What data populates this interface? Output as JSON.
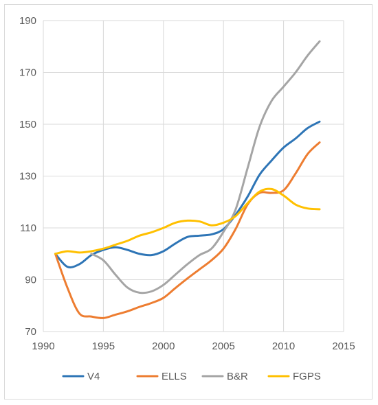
{
  "chart_data": {
    "type": "line",
    "title": "",
    "xlabel": "",
    "ylabel": "",
    "xlim": [
      1990,
      2015
    ],
    "ylim": [
      70,
      190
    ],
    "x_ticks": [
      1990,
      1995,
      2000,
      2005,
      2010,
      2015
    ],
    "y_ticks": [
      70,
      90,
      110,
      130,
      150,
      170,
      190
    ],
    "x_tick_labels": [
      "1990",
      "1995",
      "2000",
      "2005",
      "2010",
      "2015"
    ],
    "y_tick_labels": [
      "70",
      "90",
      "110",
      "130",
      "150",
      "170",
      "190"
    ],
    "grid": true,
    "legend_position": "bottom",
    "series": [
      {
        "name": "V4",
        "color": "#2e75b6",
        "x": [
          1991,
          1992,
          1993,
          1994,
          1995,
          1996,
          1997,
          1998,
          1999,
          2000,
          2001,
          2002,
          2003,
          2004,
          2005,
          2006,
          2007,
          2008,
          2009,
          2010,
          2011,
          2012,
          2013
        ],
        "y": [
          100,
          95,
          96,
          99.5,
          101.5,
          102.5,
          101.5,
          100,
          99.5,
          101,
          104,
          106.5,
          107,
          107.5,
          109.5,
          115,
          122,
          130.5,
          136,
          141,
          144.5,
          148.5,
          151
        ]
      },
      {
        "name": "ELLS",
        "color": "#ed7d31",
        "x": [
          1991,
          1992,
          1993,
          1994,
          1995,
          1996,
          1997,
          1998,
          1999,
          2000,
          2001,
          2002,
          2003,
          2004,
          2005,
          2006,
          2007,
          2008,
          2009,
          2010,
          2011,
          2012,
          2013
        ],
        "y": [
          100,
          87,
          77,
          75.8,
          75.2,
          76.5,
          77.8,
          79.5,
          81,
          83,
          86.8,
          90.5,
          94,
          97.5,
          102,
          109.5,
          119,
          123.5,
          123.5,
          124.5,
          131,
          138.5,
          143
        ]
      },
      {
        "name": "B&R",
        "color": "#a5a5a5",
        "x": [
          1994,
          1995,
          1996,
          1997,
          1998,
          1999,
          2000,
          2001,
          2002,
          2003,
          2004,
          2005,
          2006,
          2007,
          2008,
          2009,
          2010,
          2011,
          2012,
          2013
        ],
        "y": [
          100,
          97.5,
          92,
          87,
          85,
          85.5,
          88,
          92,
          96,
          99.5,
          102,
          108.5,
          117,
          133,
          149,
          159,
          164.5,
          170,
          176.5,
          182
        ]
      },
      {
        "name": "FGPS",
        "color": "#ffc000",
        "x": [
          1991,
          1992,
          1993,
          1994,
          1995,
          1996,
          1997,
          1998,
          1999,
          2000,
          2001,
          2002,
          2003,
          2004,
          2005,
          2006,
          2007,
          2008,
          2009,
          2010,
          2011,
          2012,
          2013
        ],
        "y": [
          100,
          101,
          100.5,
          101,
          102,
          103.5,
          105,
          107,
          108.3,
          110,
          112,
          112.8,
          112.5,
          111,
          112,
          114.5,
          119.5,
          124,
          125,
          122.5,
          119,
          117.5,
          117.2
        ]
      }
    ]
  }
}
